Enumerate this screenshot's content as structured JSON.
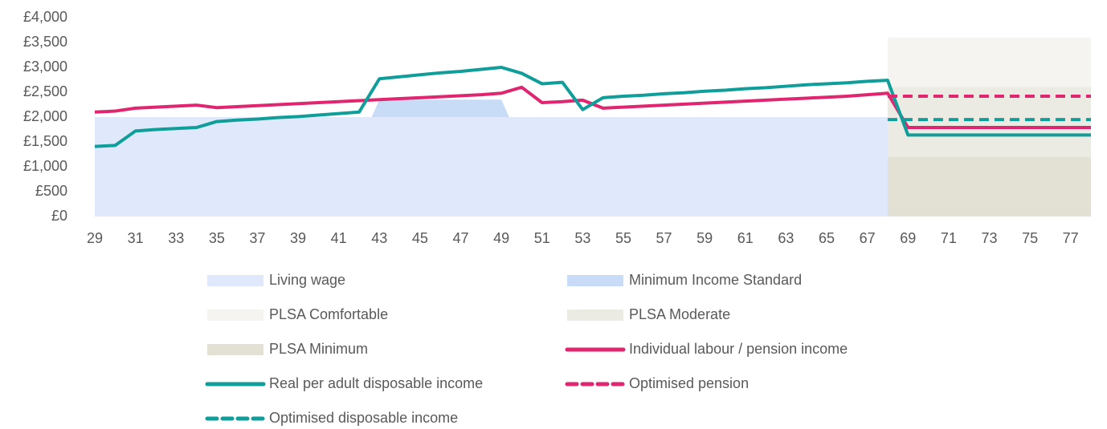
{
  "chart_data": {
    "type": "line",
    "x": [
      29,
      30,
      31,
      32,
      33,
      34,
      35,
      36,
      37,
      38,
      39,
      40,
      41,
      42,
      43,
      44,
      45,
      46,
      47,
      48,
      49,
      50,
      51,
      52,
      53,
      54,
      55,
      56,
      57,
      58,
      59,
      60,
      61,
      62,
      63,
      64,
      65,
      66,
      67,
      68,
      69,
      70,
      71,
      72,
      73,
      74,
      75,
      76,
      77,
      78
    ],
    "xlim": [
      29,
      78
    ],
    "xticks": [
      29,
      31,
      33,
      35,
      37,
      39,
      41,
      43,
      45,
      47,
      49,
      51,
      53,
      55,
      57,
      59,
      61,
      63,
      65,
      67,
      69,
      71,
      73,
      75,
      77
    ],
    "ylim": [
      0,
      4000
    ],
    "yticks": [
      {
        "value": 0,
        "label": "£0"
      },
      {
        "value": 500,
        "label": "£500"
      },
      {
        "value": 1000,
        "label": "£1,000"
      },
      {
        "value": 1500,
        "label": "£1,500"
      },
      {
        "value": 2000,
        "label": "£2,000"
      },
      {
        "value": 2500,
        "label": "£2,500"
      },
      {
        "value": 3000,
        "label": "£3,000"
      },
      {
        "value": 3500,
        "label": "£3,500"
      },
      {
        "value": 4000,
        "label": "£4,000"
      }
    ],
    "series": [
      {
        "name": "Living wage",
        "kind": "area",
        "color": "#dfe9fb",
        "values": [
          2000,
          2000,
          2000,
          2000,
          2000,
          2000,
          2000,
          2000,
          2000,
          2000,
          2000,
          2000,
          2000,
          2000,
          2000,
          2000,
          2000,
          2000,
          2000,
          2000,
          2000,
          2000,
          2000,
          2000,
          2000,
          2000,
          2000,
          2000,
          2000,
          2000,
          2000,
          2000,
          2000,
          2000,
          2000,
          2000,
          2000,
          2000,
          2000,
          2000,
          null,
          null,
          null,
          null,
          null,
          null,
          null,
          null,
          null,
          null
        ]
      },
      {
        "name": "Minimum Income Standard",
        "kind": "area",
        "color": "#c9dcf7",
        "values": [
          1430,
          1430,
          1430,
          1430,
          1430,
          1430,
          1430,
          1430,
          1430,
          1430,
          1430,
          1430,
          1430,
          1430,
          2350,
          2350,
          2350,
          2350,
          2350,
          2350,
          2350,
          1430,
          1430,
          1430,
          1430,
          1430,
          1430,
          1430,
          1430,
          1430,
          1430,
          1430,
          1430,
          1430,
          1430,
          1430,
          1430,
          1430,
          1430,
          1430,
          null,
          null,
          null,
          null,
          null,
          null,
          null,
          null,
          null,
          null
        ]
      },
      {
        "name": "PLSA Comfortable",
        "kind": "area",
        "color": "#f5f4f0",
        "values": [
          null,
          null,
          null,
          null,
          null,
          null,
          null,
          null,
          null,
          null,
          null,
          null,
          null,
          null,
          null,
          null,
          null,
          null,
          null,
          null,
          null,
          null,
          null,
          null,
          null,
          null,
          null,
          null,
          null,
          null,
          null,
          null,
          null,
          null,
          null,
          null,
          null,
          null,
          null,
          3600,
          3600,
          3600,
          3600,
          3600,
          3600,
          3600,
          3600,
          3600,
          3600,
          3600
        ]
      },
      {
        "name": "PLSA Moderate",
        "kind": "area",
        "color": "#ecebe3",
        "values": [
          null,
          null,
          null,
          null,
          null,
          null,
          null,
          null,
          null,
          null,
          null,
          null,
          null,
          null,
          null,
          null,
          null,
          null,
          null,
          null,
          null,
          null,
          null,
          null,
          null,
          null,
          null,
          null,
          null,
          null,
          null,
          null,
          null,
          null,
          null,
          null,
          null,
          null,
          null,
          2600,
          2600,
          2600,
          2600,
          2600,
          2600,
          2600,
          2600,
          2600,
          2600,
          2600
        ]
      },
      {
        "name": "PLSA Minimum",
        "kind": "area",
        "color": "#e3e0d4",
        "values": [
          null,
          null,
          null,
          null,
          null,
          null,
          null,
          null,
          null,
          null,
          null,
          null,
          null,
          null,
          null,
          null,
          null,
          null,
          null,
          null,
          null,
          null,
          null,
          null,
          null,
          null,
          null,
          null,
          null,
          null,
          null,
          null,
          null,
          null,
          null,
          null,
          null,
          null,
          null,
          1200,
          1200,
          1200,
          1200,
          1200,
          1200,
          1200,
          1200,
          1200,
          1200,
          1200
        ]
      },
      {
        "name": "Individual labour / pension income",
        "kind": "line",
        "color": "#e0266f",
        "values": [
          2100,
          2120,
          2180,
          2200,
          2220,
          2240,
          2190,
          2210,
          2230,
          2250,
          2270,
          2290,
          2310,
          2330,
          2350,
          2370,
          2390,
          2410,
          2430,
          2450,
          2480,
          2600,
          2290,
          2310,
          2340,
          2180,
          2200,
          2220,
          2240,
          2260,
          2280,
          2300,
          2320,
          2340,
          2360,
          2380,
          2400,
          2420,
          2450,
          2480,
          1790,
          1790,
          1790,
          1790,
          1790,
          1790,
          1790,
          1790,
          1790,
          1790
        ]
      },
      {
        "name": "Real per adult disposable income",
        "kind": "line",
        "color": "#0f9e9a",
        "values": [
          1410,
          1430,
          1720,
          1750,
          1770,
          1790,
          1910,
          1940,
          1960,
          1990,
          2010,
          2040,
          2070,
          2100,
          2770,
          2810,
          2850,
          2890,
          2920,
          2960,
          3000,
          2880,
          2670,
          2700,
          2150,
          2390,
          2420,
          2440,
          2470,
          2490,
          2520,
          2540,
          2570,
          2590,
          2620,
          2650,
          2670,
          2690,
          2720,
          2740,
          1640,
          1640,
          1640,
          1640,
          1640,
          1640,
          1640,
          1640,
          1640,
          1640
        ]
      },
      {
        "name": "Optimised pension",
        "kind": "line",
        "dashed": true,
        "color": "#e0266f",
        "values": [
          null,
          null,
          null,
          null,
          null,
          null,
          null,
          null,
          null,
          null,
          null,
          null,
          null,
          null,
          null,
          null,
          null,
          null,
          null,
          null,
          null,
          null,
          null,
          null,
          null,
          null,
          null,
          null,
          null,
          null,
          null,
          null,
          null,
          null,
          null,
          null,
          null,
          null,
          null,
          2420,
          2420,
          2420,
          2420,
          2420,
          2420,
          2420,
          2420,
          2420,
          2420,
          2420
        ]
      },
      {
        "name": "Optimised disposable income",
        "kind": "line",
        "dashed": true,
        "color": "#0f9e9a",
        "values": [
          null,
          null,
          null,
          null,
          null,
          null,
          null,
          null,
          null,
          null,
          null,
          null,
          null,
          null,
          null,
          null,
          null,
          null,
          null,
          null,
          null,
          null,
          null,
          null,
          null,
          null,
          null,
          null,
          null,
          null,
          null,
          null,
          null,
          null,
          null,
          null,
          null,
          null,
          null,
          1950,
          1950,
          1950,
          1950,
          1950,
          1950,
          1950,
          1950,
          1950,
          1950,
          1950
        ]
      }
    ]
  }
}
